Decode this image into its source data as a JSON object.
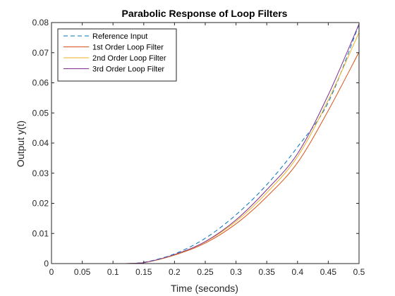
{
  "chart_data": {
    "type": "line",
    "title": "Parabolic Response of Loop Filters",
    "xlabel": "Time (seconds)",
    "ylabel": "Output y(t)",
    "xlim": [
      0,
      0.5
    ],
    "ylim": [
      0,
      0.08
    ],
    "xticks": [
      "0",
      "0.05",
      "0.1",
      "0.15",
      "0.2",
      "0.25",
      "0.3",
      "0.35",
      "0.4",
      "0.45",
      "0.5"
    ],
    "yticks": [
      "0",
      "0.01",
      "0.02",
      "0.03",
      "0.04",
      "0.05",
      "0.06",
      "0.07",
      "0.08"
    ],
    "grid": false,
    "legend_position": "top-left",
    "series": [
      {
        "name": "Reference Input",
        "color": "#0072BD",
        "dash": "dashed",
        "x": [
          0,
          0.05,
          0.1,
          0.12,
          0.15,
          0.2,
          0.25,
          0.3,
          0.35,
          0.4,
          0.45,
          0.5
        ],
        "y": [
          0,
          0,
          0,
          0,
          0.0004,
          0.0032,
          0.0084,
          0.0162,
          0.0262,
          0.0387,
          0.0535,
          0.0794
        ]
      },
      {
        "name": "1st Order Loop Filter",
        "color": "#D95319",
        "dash": "solid",
        "x": [
          0,
          0.05,
          0.1,
          0.12,
          0.15,
          0.2,
          0.25,
          0.3,
          0.35,
          0.4,
          0.45,
          0.5
        ],
        "y": [
          0,
          0,
          0,
          0,
          0.0003,
          0.0028,
          0.0068,
          0.0132,
          0.0222,
          0.0335,
          0.0508,
          0.0702
        ]
      },
      {
        "name": "2nd Order Loop Filter",
        "color": "#EDB120",
        "dash": "solid",
        "x": [
          0,
          0.05,
          0.1,
          0.12,
          0.15,
          0.2,
          0.25,
          0.3,
          0.35,
          0.4,
          0.45,
          0.5
        ],
        "y": [
          0,
          0,
          0,
          0,
          0.0003,
          0.0029,
          0.0072,
          0.014,
          0.0235,
          0.0355,
          0.0543,
          0.0767
        ]
      },
      {
        "name": "3rd Order Loop Filter",
        "color": "#7E2F8E",
        "dash": "solid",
        "x": [
          0,
          0.05,
          0.1,
          0.12,
          0.15,
          0.2,
          0.25,
          0.3,
          0.35,
          0.4,
          0.45,
          0.5
        ],
        "y": [
          0,
          0,
          0,
          0,
          0.0003,
          0.003,
          0.0073,
          0.0145,
          0.0245,
          0.0365,
          0.056,
          0.0795
        ]
      }
    ]
  }
}
